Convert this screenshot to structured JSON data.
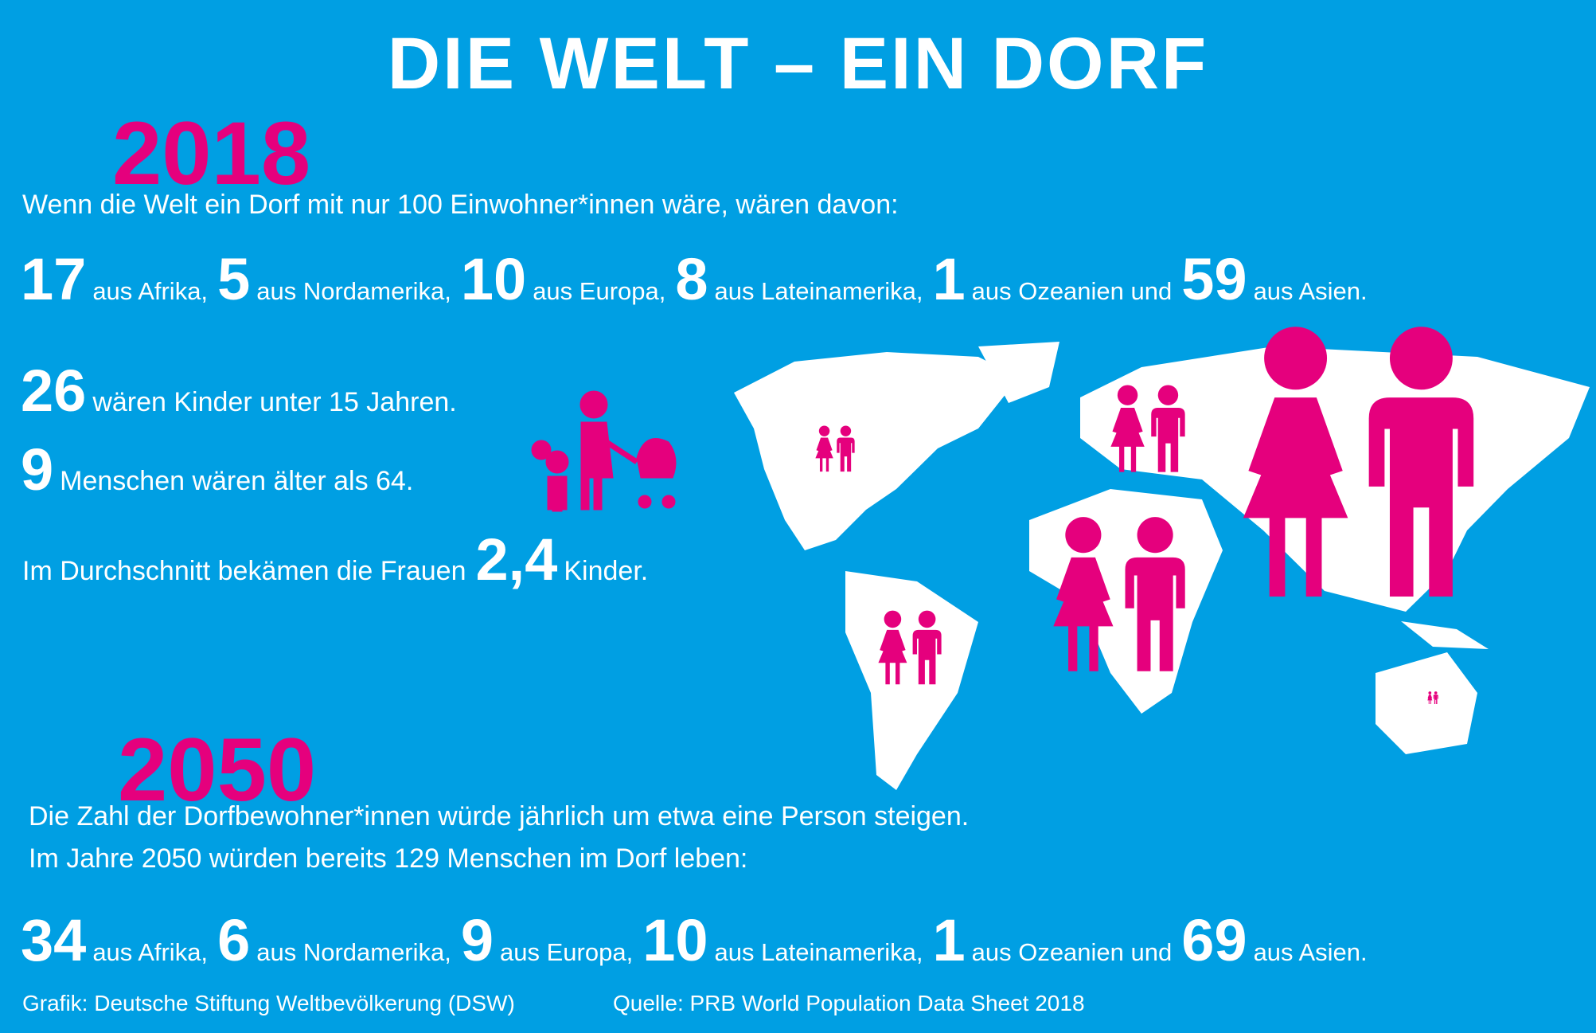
{
  "title": "DIE WELT – EIN DORF",
  "section_2018": {
    "year": "2018",
    "intro": "Wenn die Welt ein Dorf mit nur 100 Einwohner*innen wäre, wären davon:",
    "regions": [
      {
        "number": 17,
        "text": "aus Afrika,"
      },
      {
        "number": 5,
        "text": "aus Nordamerika,"
      },
      {
        "number": 10,
        "text": "aus Europa,"
      },
      {
        "number": 8,
        "text": "aus Lateinamerika,"
      },
      {
        "number": 1,
        "text": "aus Ozeanien und"
      },
      {
        "number": 59,
        "text": "aus Asien."
      }
    ],
    "facts": [
      {
        "number": 26,
        "text": "wären Kinder unter 15 Jahren."
      },
      {
        "number": 9,
        "text": "Menschen wären älter als 64."
      }
    ],
    "fertility": {
      "before": "Im Durchschnitt bekämen die Frauen",
      "number": "2,4",
      "after": "Kinder."
    }
  },
  "section_2050": {
    "year": "2050",
    "lines": [
      "Die Zahl der Dorfbewohner*innen würde jährlich um etwa eine Person steigen.",
      "Im Jahre 2050 würden bereits 129 Menschen im Dorf leben:"
    ],
    "regions": [
      {
        "number": 34,
        "text": "aus Afrika,"
      },
      {
        "number": 6,
        "text": "aus Nordamerika,"
      },
      {
        "number": 9,
        "text": "aus Europa,"
      },
      {
        "number": 10,
        "text": "aus Lateinamerika,"
      },
      {
        "number": 1,
        "text": "aus Ozeanien und"
      },
      {
        "number": 69,
        "text": "aus Asien."
      }
    ]
  },
  "footer": {
    "credit": "Grafik: Deutsche Stiftung Weltbevölkerung (DSW)",
    "source": "Quelle: PRB World Population Data Sheet 2018"
  }
}
